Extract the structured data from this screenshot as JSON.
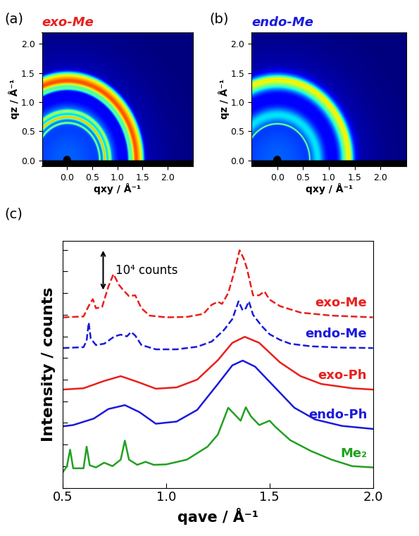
{
  "chart_data": [
    {
      "type": "image",
      "panel": "(a)",
      "title": "exo-Me",
      "color": "#e8201c",
      "xlabel": "qxy / Å⁻¹",
      "ylabel": "qz / Å⁻¹",
      "xlim": [
        -0.5,
        2.5
      ],
      "ylim": [
        -0.1,
        2.2
      ],
      "xticks": [
        {
          "value": 0,
          "label": "0.0"
        },
        {
          "value": 0.5,
          "label": "0.5"
        },
        {
          "value": 1,
          "label": "1.0"
        },
        {
          "value": 1.5,
          "label": "1.5"
        },
        {
          "value": 2,
          "label": "2.0"
        }
      ],
      "yticks": [
        {
          "value": 0,
          "label": "0.0"
        },
        {
          "value": 0.5,
          "label": "0.5"
        },
        {
          "value": 1,
          "label": "1.0"
        },
        {
          "value": 1.5,
          "label": "1.5"
        },
        {
          "value": 2,
          "label": "2.0"
        }
      ],
      "rings": [
        {
          "q": 0,
          "intensity": 0.22,
          "width": 0.9
        },
        {
          "q": 0.64,
          "intensity": 0.35,
          "width": 0.012
        },
        {
          "q": 0.74,
          "intensity": 0.45,
          "width": 0.02
        },
        {
          "q": 0.8,
          "intensity": 0.15,
          "width": 0.1
        },
        {
          "q": 0.84,
          "intensity": 0.3,
          "width": 0.02
        },
        {
          "q": 1.23,
          "intensity": 0.25,
          "width": 0.02
        },
        {
          "q": 1.36,
          "intensity": 0.75,
          "width": 0.07
        },
        {
          "q": 1.47,
          "intensity": 0.3,
          "width": 0.04
        }
      ]
    },
    {
      "type": "image",
      "panel": "(b)",
      "title": "endo-Me",
      "color": "#1a1adc",
      "xlabel": "qxy / Å⁻¹",
      "ylabel": "qz / Å⁻¹",
      "xlim": [
        -0.5,
        2.5
      ],
      "ylim": [
        -0.1,
        2.2
      ],
      "xticks": [
        {
          "value": 0,
          "label": "0.0"
        },
        {
          "value": 0.5,
          "label": "0.5"
        },
        {
          "value": 1,
          "label": "1.0"
        },
        {
          "value": 1.5,
          "label": "1.5"
        },
        {
          "value": 2,
          "label": "2.0"
        }
      ],
      "yticks": [
        {
          "value": 0,
          "label": "0.0"
        },
        {
          "value": 0.5,
          "label": "0.5"
        },
        {
          "value": 1,
          "label": "1.0"
        },
        {
          "value": 1.5,
          "label": "1.5"
        },
        {
          "value": 2,
          "label": "2.0"
        }
      ],
      "rings": [
        {
          "q": 0,
          "intensity": 0.22,
          "width": 0.9
        },
        {
          "q": 0.625,
          "intensity": 0.4,
          "width": 0.008
        },
        {
          "q": 0.78,
          "intensity": 0.2,
          "width": 0.08
        },
        {
          "q": 1.35,
          "intensity": 0.5,
          "width": 0.09
        },
        {
          "q": 1.4,
          "intensity": 0.15,
          "width": 0.03
        }
      ]
    },
    {
      "type": "line",
      "panel": "(c)",
      "xlabel": "qave / Å⁻¹",
      "ylabel": "Intensity / counts",
      "xlim": [
        0.5,
        2.0
      ],
      "ylim": [
        0,
        57000
      ],
      "xticks": [
        {
          "value": 0.5,
          "label": "0.5"
        },
        {
          "value": 1,
          "label": "1.0"
        },
        {
          "value": 1.5,
          "label": "1.5"
        },
        {
          "value": 2,
          "label": "2.0"
        }
      ],
      "yticks": [
        0,
        5000,
        10000,
        15000,
        20000,
        25000,
        30000,
        35000,
        40000,
        45000,
        50000,
        55000
      ],
      "tick_labels": "x",
      "scale_bar": {
        "label": "10⁴ counts",
        "value": 10000
      },
      "series": [
        {
          "name": "exo-Me",
          "color": "#e8201c",
          "line_style": "dashed",
          "x": [
            0.5,
            0.6,
            0.63,
            0.645,
            0.66,
            0.69,
            0.72,
            0.745,
            0.77,
            0.79,
            0.82,
            0.85,
            0.88,
            0.92,
            1.0,
            1.1,
            1.18,
            1.22,
            1.25,
            1.27,
            1.3,
            1.33,
            1.355,
            1.375,
            1.39,
            1.42,
            1.45,
            1.475,
            1.5,
            1.55,
            1.65,
            1.8,
            2.0
          ],
          "values": [
            39400,
            39600,
            42500,
            43600,
            41500,
            41800,
            46500,
            49400,
            47000,
            45800,
            44300,
            44500,
            41500,
            39800,
            39400,
            39500,
            40200,
            42300,
            43000,
            42500,
            45000,
            50000,
            54900,
            53000,
            50800,
            44500,
            44500,
            45400,
            43500,
            42000,
            40500,
            39800,
            39400
          ]
        },
        {
          "name": "endo-Me",
          "color": "#1a1adc",
          "line_style": "dashed",
          "x": [
            0.5,
            0.6,
            0.615,
            0.625,
            0.635,
            0.66,
            0.7,
            0.75,
            0.78,
            0.81,
            0.83,
            0.85,
            0.88,
            0.95,
            1.05,
            1.15,
            1.22,
            1.28,
            1.32,
            1.35,
            1.37,
            1.385,
            1.4,
            1.42,
            1.46,
            1.5,
            1.55,
            1.6,
            1.7,
            1.85,
            2.0
          ],
          "values": [
            32300,
            32500,
            34000,
            38200,
            34500,
            33000,
            33300,
            35000,
            35400,
            35000,
            36000,
            35200,
            33000,
            32000,
            32000,
            32600,
            33800,
            36500,
            39000,
            43100,
            41000,
            41500,
            43100,
            40000,
            37500,
            35500,
            34200,
            33300,
            32700,
            32400,
            32300
          ]
        },
        {
          "name": "exo-Ph",
          "color": "#e8201c",
          "line_style": "solid",
          "x": [
            0.5,
            0.6,
            0.7,
            0.78,
            0.86,
            0.95,
            1.05,
            1.15,
            1.25,
            1.32,
            1.38,
            1.45,
            1.55,
            1.65,
            1.75,
            1.9,
            2.0
          ],
          "values": [
            22700,
            23000,
            24700,
            25800,
            24500,
            22900,
            23200,
            25000,
            29500,
            33500,
            34900,
            33500,
            29000,
            25800,
            24000,
            23000,
            22700
          ]
        },
        {
          "name": "endo-Ph",
          "color": "#1a1adc",
          "line_style": "solid",
          "x": [
            0.5,
            0.55,
            0.65,
            0.72,
            0.8,
            0.87,
            0.95,
            1.05,
            1.15,
            1.25,
            1.32,
            1.37,
            1.43,
            1.52,
            1.62,
            1.72,
            1.85,
            2.0
          ],
          "values": [
            14200,
            14500,
            16000,
            18200,
            19100,
            17500,
            14800,
            15300,
            18000,
            24000,
            28300,
            29400,
            28000,
            23500,
            18500,
            15800,
            14300,
            13600
          ]
        },
        {
          "name": "Me₂",
          "color": "#22a022",
          "line_style": "solid",
          "x": [
            0.5,
            0.52,
            0.535,
            0.55,
            0.6,
            0.615,
            0.63,
            0.66,
            0.7,
            0.74,
            0.78,
            0.8,
            0.82,
            0.86,
            0.9,
            0.94,
            1.0,
            1.1,
            1.2,
            1.25,
            1.3,
            1.33,
            1.36,
            1.385,
            1.41,
            1.45,
            1.5,
            1.53,
            1.6,
            1.7,
            1.8,
            1.9,
            2.0
          ],
          "values": [
            3600,
            5000,
            8800,
            4500,
            4500,
            9500,
            5200,
            4700,
            5800,
            5000,
            6500,
            10900,
            6500,
            5300,
            6000,
            5300,
            5400,
            6500,
            9500,
            12300,
            18500,
            17000,
            15500,
            18600,
            16500,
            14500,
            15500,
            14000,
            11000,
            8500,
            6500,
            5000,
            4700
          ]
        }
      ]
    }
  ]
}
